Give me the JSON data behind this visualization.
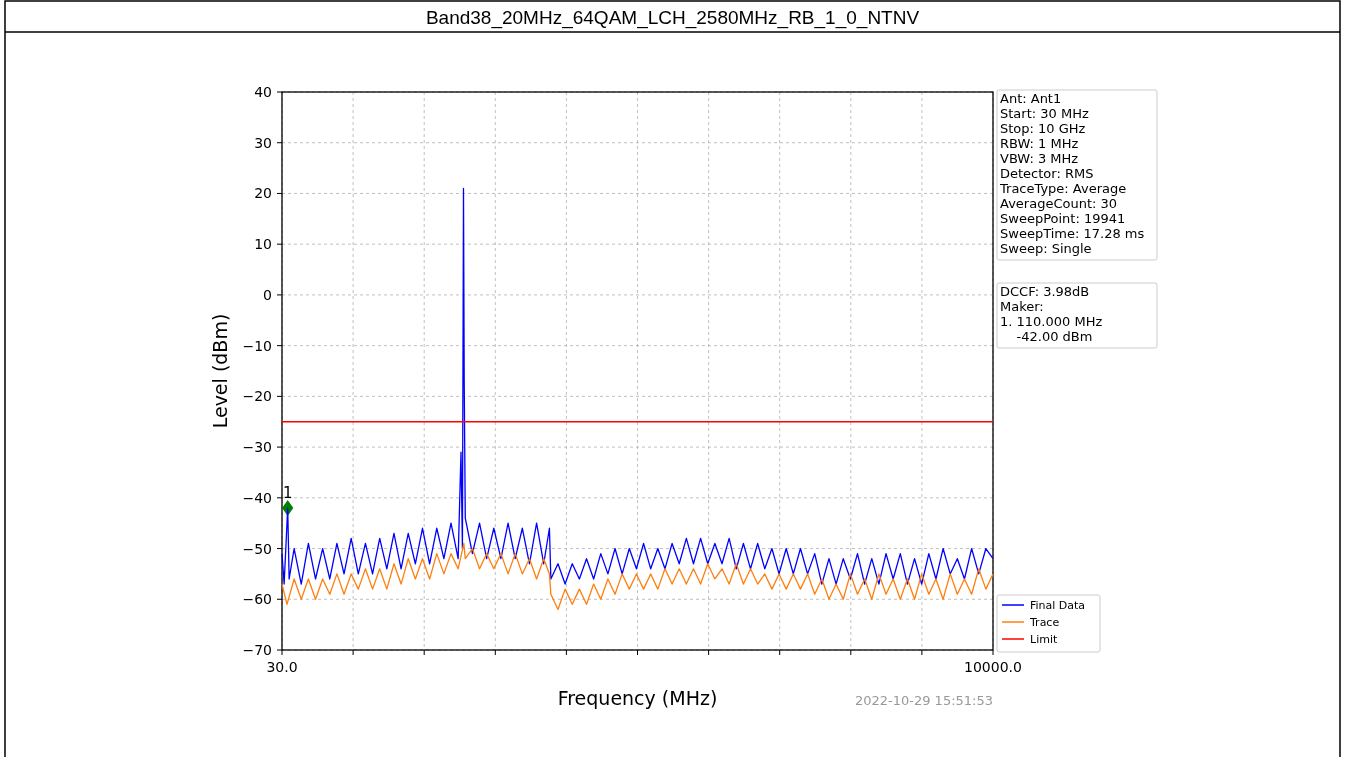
{
  "chart_data": {
    "type": "line",
    "title": "Band38_20MHz_64QAM_LCH_2580MHz_RB_1_0_NTNV",
    "xlabel": "Frequency (MHz)",
    "ylabel": "Level (dBm)",
    "xlim": [
      30,
      10000
    ],
    "xticks": [
      {
        "value": 30,
        "label": "30.0"
      },
      {
        "value": 1027,
        "label": null
      },
      {
        "value": 2024,
        "label": null
      },
      {
        "value": 3021,
        "label": null
      },
      {
        "value": 4018,
        "label": null
      },
      {
        "value": 5015,
        "label": null
      },
      {
        "value": 6012,
        "label": null
      },
      {
        "value": 7009,
        "label": null
      },
      {
        "value": 8006,
        "label": null
      },
      {
        "value": 9003,
        "label": null
      },
      {
        "value": 10000,
        "label": "10000.0"
      }
    ],
    "ylim": [
      -70,
      40
    ],
    "yticks": [
      {
        "value": -70,
        "label": "−70"
      },
      {
        "value": -60,
        "label": "−60"
      },
      {
        "value": -50,
        "label": "−50"
      },
      {
        "value": -40,
        "label": "−40"
      },
      {
        "value": -30,
        "label": "−30"
      },
      {
        "value": -20,
        "label": "−20"
      },
      {
        "value": -10,
        "label": "−10"
      },
      0,
      10,
      20,
      30,
      40
    ],
    "grid": true,
    "legend": "bottom right",
    "series": [
      {
        "name": "Final Data",
        "color": "#0000ff",
        "x": [
          30,
          60,
          110,
          130,
          200,
          300,
          400,
          500,
          600,
          700,
          800,
          900,
          1000,
          1100,
          1200,
          1300,
          1400,
          1500,
          1600,
          1700,
          1800,
          1900,
          2000,
          2100,
          2200,
          2300,
          2400,
          2500,
          2540,
          2560,
          2575,
          2585,
          2600,
          2700,
          2800,
          2900,
          3000,
          3100,
          3200,
          3300,
          3400,
          3500,
          3600,
          3700,
          3780,
          3800,
          3900,
          4000,
          4100,
          4200,
          4300,
          4400,
          4500,
          4600,
          4700,
          4800,
          4900,
          5000,
          5100,
          5200,
          5300,
          5400,
          5500,
          5600,
          5700,
          5800,
          5900,
          6000,
          6100,
          6200,
          6300,
          6400,
          6500,
          6600,
          6700,
          6800,
          6900,
          7000,
          7100,
          7200,
          7300,
          7400,
          7500,
          7600,
          7700,
          7800,
          7900,
          8000,
          8100,
          8200,
          8300,
          8400,
          8500,
          8600,
          8700,
          8800,
          8900,
          9000,
          9100,
          9200,
          9300,
          9400,
          9500,
          9600,
          9700,
          9800,
          9900,
          10000
        ],
        "values": [
          -51,
          -57,
          -42,
          -56,
          -50,
          -57,
          -49,
          -56,
          -50,
          -56,
          -49,
          -55,
          -48,
          -55,
          -49,
          -55,
          -48,
          -54,
          -47,
          -54,
          -47,
          -53,
          -46,
          -53,
          -46,
          -52,
          -45,
          -52,
          -31,
          -50,
          21,
          -17,
          -44,
          -51,
          -45,
          -52,
          -46,
          -52,
          -45,
          -52,
          -46,
          -53,
          -45,
          -53,
          -46,
          -56,
          -53,
          -57,
          -53,
          -56,
          -52,
          -56,
          -51,
          -55,
          -50,
          -55,
          -50,
          -54,
          -49,
          -54,
          -50,
          -54,
          -49,
          -53,
          -48,
          -53,
          -48,
          -53,
          -49,
          -53,
          -48,
          -54,
          -49,
          -54,
          -49,
          -54,
          -50,
          -55,
          -50,
          -55,
          -50,
          -55,
          -51,
          -57,
          -52,
          -57,
          -52,
          -56,
          -51,
          -57,
          -52,
          -57,
          -51,
          -56,
          -51,
          -57,
          -52,
          -57,
          -51,
          -56,
          -50,
          -55,
          -52,
          -56,
          -50,
          -55,
          -50,
          -52
        ]
      },
      {
        "name": "Trace",
        "color": "#ff7f0e",
        "x": [
          30,
          100,
          200,
          300,
          400,
          500,
          600,
          700,
          800,
          900,
          1000,
          1100,
          1200,
          1300,
          1400,
          1500,
          1600,
          1700,
          1800,
          1900,
          2000,
          2100,
          2200,
          2300,
          2400,
          2500,
          2580,
          2600,
          2700,
          2800,
          2900,
          3000,
          3100,
          3200,
          3300,
          3400,
          3500,
          3600,
          3700,
          3780,
          3800,
          3900,
          4000,
          4100,
          4200,
          4300,
          4400,
          4500,
          4600,
          4700,
          4800,
          4900,
          5000,
          5100,
          5200,
          5300,
          5400,
          5500,
          5600,
          5700,
          5800,
          5900,
          6000,
          6100,
          6200,
          6300,
          6400,
          6500,
          6600,
          6700,
          6800,
          6900,
          7000,
          7100,
          7200,
          7300,
          7400,
          7500,
          7600,
          7700,
          7800,
          7900,
          8000,
          8100,
          8200,
          8300,
          8400,
          8500,
          8600,
          8700,
          8800,
          8900,
          9000,
          9100,
          9200,
          9300,
          9400,
          9500,
          9600,
          9700,
          9800,
          9900,
          10000
        ],
        "values": [
          -57,
          -61,
          -56,
          -60,
          -56,
          -60,
          -56,
          -59,
          -55,
          -59,
          -55,
          -58,
          -54,
          -58,
          -54,
          -58,
          -53,
          -57,
          -52,
          -56,
          -52,
          -56,
          -51,
          -55,
          -51,
          -54,
          -49,
          -52,
          -50,
          -54,
          -51,
          -54,
          -51,
          -55,
          -51,
          -55,
          -52,
          -56,
          -52,
          -55,
          -59,
          -62,
          -58,
          -61,
          -58,
          -61,
          -57,
          -60,
          -56,
          -59,
          -55,
          -58,
          -55,
          -58,
          -55,
          -58,
          -54,
          -57,
          -54,
          -57,
          -54,
          -57,
          -53,
          -56,
          -54,
          -57,
          -53,
          -57,
          -54,
          -57,
          -55,
          -58,
          -55,
          -58,
          -55,
          -58,
          -55,
          -59,
          -56,
          -60,
          -57,
          -60,
          -55,
          -59,
          -56,
          -60,
          -55,
          -59,
          -56,
          -60,
          -56,
          -60,
          -55,
          -59,
          -56,
          -60,
          -55,
          -59,
          -56,
          -59,
          -54,
          -58,
          -55
        ]
      },
      {
        "name": "Limit",
        "color": "#ff0000",
        "x": [
          30,
          10000
        ],
        "values": [
          -25,
          -25
        ]
      },
      {
        "type": "scatter",
        "marker": "diamond",
        "color": "#008000",
        "x": [
          110
        ],
        "values": [
          -42
        ]
      }
    ],
    "annotations": [
      {
        "text": "1",
        "x": 110,
        "y": -42
      },
      "Ant: Ant1\nStart: 30 MHz\nStop: 10 GHz\nRBW: 1 MHz\nVBW: 3 MHz\nDetector: RMS\nTraceType: Average\nAverageCount: 30\nSweepPoint: 19941\nSweepTime: 17.28 ms\nSweep: Single",
      "DCCF: 3.98dB\nMaker:\n1. 110.000 MHz\n    -42.00 dBm",
      "2022-10-29 15:51:53"
    ]
  }
}
